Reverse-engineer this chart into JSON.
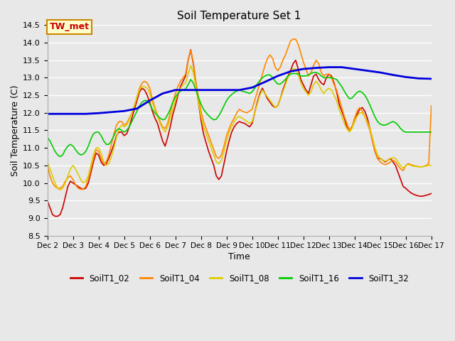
{
  "title": "Soil Temperature Set 1",
  "xlabel": "Time",
  "ylabel": "Soil Temperature (C)",
  "ylim": [
    8.5,
    14.5
  ],
  "xlim": [
    2,
    17
  ],
  "bg_color": "#e8e8e8",
  "grid_color": "white",
  "annotation_text": "TW_met",
  "annotation_bg": "#ffffcc",
  "annotation_border": "#cc8800",
  "annotation_text_color": "#cc0000",
  "series_order": [
    "SoilT1_02",
    "SoilT1_04",
    "SoilT1_08",
    "SoilT1_16",
    "SoilT1_32"
  ],
  "series": {
    "SoilT1_02": {
      "color": "#cc0000",
      "linewidth": 1.2,
      "x": [
        2.0,
        2.1,
        2.2,
        2.3,
        2.4,
        2.5,
        2.6,
        2.7,
        2.8,
        2.9,
        3.0,
        3.1,
        3.2,
        3.3,
        3.4,
        3.5,
        3.6,
        3.7,
        3.8,
        3.9,
        4.0,
        4.1,
        4.2,
        4.3,
        4.4,
        4.5,
        4.6,
        4.7,
        4.8,
        4.9,
        5.0,
        5.1,
        5.2,
        5.3,
        5.4,
        5.5,
        5.6,
        5.7,
        5.8,
        5.9,
        6.0,
        6.1,
        6.2,
        6.3,
        6.4,
        6.5,
        6.6,
        6.7,
        6.8,
        6.9,
        7.0,
        7.1,
        7.2,
        7.3,
        7.4,
        7.5,
        7.6,
        7.7,
        7.8,
        7.9,
        8.0,
        8.1,
        8.2,
        8.3,
        8.4,
        8.5,
        8.6,
        8.7,
        8.8,
        8.9,
        9.0,
        9.1,
        9.2,
        9.3,
        9.4,
        9.5,
        9.6,
        9.7,
        9.8,
        9.9,
        10.0,
        10.1,
        10.2,
        10.3,
        10.4,
        10.5,
        10.6,
        10.7,
        10.8,
        10.9,
        11.0,
        11.1,
        11.2,
        11.3,
        11.4,
        11.5,
        11.6,
        11.7,
        11.8,
        11.9,
        12.0,
        12.1,
        12.2,
        12.3,
        12.4,
        12.5,
        12.6,
        12.7,
        12.8,
        12.9,
        13.0,
        13.1,
        13.2,
        13.3,
        13.4,
        13.5,
        13.6,
        13.7,
        13.8,
        13.9,
        14.0,
        14.1,
        14.2,
        14.3,
        14.4,
        14.5,
        14.6,
        14.7,
        14.8,
        14.9,
        15.0,
        15.1,
        15.2,
        15.3,
        15.4,
        15.5,
        15.6,
        15.7,
        15.8,
        15.9,
        16.0,
        16.1,
        16.2,
        16.3,
        16.4,
        16.5,
        16.6,
        16.7,
        16.8,
        16.9,
        17.0
      ],
      "y": [
        9.5,
        9.3,
        9.1,
        9.05,
        9.05,
        9.1,
        9.3,
        9.6,
        9.9,
        10.05,
        10.0,
        9.95,
        9.9,
        9.85,
        9.82,
        9.85,
        10.0,
        10.3,
        10.6,
        10.85,
        10.8,
        10.6,
        10.5,
        10.55,
        10.7,
        10.9,
        11.1,
        11.35,
        11.45,
        11.45,
        11.35,
        11.4,
        11.6,
        11.85,
        12.1,
        12.35,
        12.6,
        12.7,
        12.65,
        12.5,
        12.3,
        12.05,
        11.85,
        11.7,
        11.45,
        11.2,
        11.05,
        11.3,
        11.6,
        11.95,
        12.2,
        12.5,
        12.75,
        12.9,
        13.05,
        13.5,
        13.8,
        13.4,
        12.85,
        12.3,
        11.8,
        11.4,
        11.15,
        10.9,
        10.7,
        10.5,
        10.2,
        10.1,
        10.2,
        10.55,
        10.9,
        11.2,
        11.45,
        11.6,
        11.7,
        11.75,
        11.72,
        11.7,
        11.65,
        11.6,
        11.7,
        12.0,
        12.3,
        12.55,
        12.7,
        12.55,
        12.4,
        12.3,
        12.2,
        12.15,
        12.2,
        12.4,
        12.65,
        12.85,
        13.05,
        13.2,
        13.4,
        13.5,
        13.25,
        12.95,
        12.8,
        12.65,
        12.55,
        12.8,
        13.05,
        13.1,
        12.95,
        12.85,
        12.8,
        13.0,
        13.1,
        13.05,
        12.85,
        12.6,
        12.25,
        12.05,
        11.85,
        11.6,
        11.5,
        11.6,
        11.75,
        11.95,
        12.1,
        12.15,
        12.05,
        11.85,
        11.55,
        11.2,
        10.9,
        10.7,
        10.7,
        10.65,
        10.6,
        10.65,
        10.7,
        10.6,
        10.5,
        10.3,
        10.1,
        9.9,
        9.85,
        9.78,
        9.72,
        9.68,
        9.65,
        9.63,
        9.62,
        9.63,
        9.65,
        9.67,
        9.7
      ]
    },
    "SoilT1_04": {
      "color": "#ff8800",
      "linewidth": 1.2,
      "x": [
        2.0,
        2.1,
        2.2,
        2.3,
        2.4,
        2.5,
        2.6,
        2.7,
        2.8,
        2.9,
        3.0,
        3.1,
        3.2,
        3.3,
        3.4,
        3.5,
        3.6,
        3.7,
        3.8,
        3.9,
        4.0,
        4.1,
        4.2,
        4.3,
        4.4,
        4.5,
        4.6,
        4.7,
        4.8,
        4.9,
        5.0,
        5.1,
        5.2,
        5.3,
        5.4,
        5.5,
        5.6,
        5.7,
        5.8,
        5.9,
        6.0,
        6.1,
        6.2,
        6.3,
        6.4,
        6.5,
        6.6,
        6.7,
        6.8,
        6.9,
        7.0,
        7.1,
        7.2,
        7.3,
        7.4,
        7.5,
        7.6,
        7.7,
        7.8,
        7.9,
        8.0,
        8.1,
        8.2,
        8.3,
        8.4,
        8.5,
        8.6,
        8.7,
        8.8,
        8.9,
        9.0,
        9.1,
        9.2,
        9.3,
        9.4,
        9.5,
        9.6,
        9.7,
        9.8,
        9.9,
        10.0,
        10.1,
        10.2,
        10.3,
        10.4,
        10.5,
        10.6,
        10.7,
        10.8,
        10.9,
        11.0,
        11.1,
        11.2,
        11.3,
        11.4,
        11.5,
        11.6,
        11.7,
        11.8,
        11.9,
        12.0,
        12.1,
        12.2,
        12.3,
        12.4,
        12.5,
        12.6,
        12.7,
        12.8,
        12.9,
        13.0,
        13.1,
        13.2,
        13.3,
        13.4,
        13.5,
        13.6,
        13.7,
        13.8,
        13.9,
        14.0,
        14.1,
        14.2,
        14.3,
        14.4,
        14.5,
        14.6,
        14.7,
        14.8,
        14.9,
        15.0,
        15.1,
        15.2,
        15.3,
        15.4,
        15.5,
        15.6,
        15.7,
        15.8,
        15.9,
        16.0,
        16.1,
        16.2,
        16.3,
        16.4,
        16.5,
        16.6,
        16.7,
        16.8,
        16.9,
        17.0
      ],
      "y": [
        10.5,
        10.2,
        10.0,
        9.9,
        9.85,
        9.85,
        9.9,
        10.05,
        10.15,
        10.2,
        10.1,
        9.95,
        9.85,
        9.82,
        9.82,
        9.9,
        10.1,
        10.4,
        10.7,
        10.95,
        10.9,
        10.7,
        10.55,
        10.6,
        10.8,
        11.1,
        11.4,
        11.65,
        11.75,
        11.75,
        11.65,
        11.7,
        11.85,
        12.0,
        12.2,
        12.45,
        12.7,
        12.85,
        12.9,
        12.85,
        12.7,
        12.4,
        12.15,
        11.95,
        11.75,
        11.6,
        11.55,
        11.7,
        12.0,
        12.3,
        12.55,
        12.75,
        12.9,
        13.0,
        13.1,
        13.5,
        13.78,
        13.45,
        12.9,
        12.45,
        12.05,
        11.75,
        11.55,
        11.35,
        11.15,
        10.95,
        10.75,
        10.7,
        10.8,
        11.05,
        11.35,
        11.55,
        11.72,
        11.85,
        12.0,
        12.1,
        12.05,
        12.02,
        12.0,
        12.05,
        12.1,
        12.35,
        12.6,
        12.85,
        13.1,
        13.35,
        13.55,
        13.65,
        13.55,
        13.3,
        13.2,
        13.3,
        13.5,
        13.65,
        13.85,
        14.05,
        14.1,
        14.1,
        13.95,
        13.7,
        13.45,
        13.25,
        13.05,
        13.15,
        13.35,
        13.5,
        13.4,
        13.15,
        13.05,
        13.1,
        13.1,
        13.0,
        12.8,
        12.65,
        12.4,
        12.15,
        11.9,
        11.7,
        11.5,
        11.6,
        11.85,
        12.05,
        12.15,
        12.05,
        11.9,
        11.7,
        11.5,
        11.2,
        10.9,
        10.7,
        10.6,
        10.55,
        10.52,
        10.55,
        10.6,
        10.65,
        10.6,
        10.5,
        10.4,
        10.35,
        10.5,
        10.55,
        10.52,
        10.5,
        10.48,
        10.47,
        10.46,
        10.47,
        10.5,
        10.55,
        12.2
      ]
    },
    "SoilT1_08": {
      "color": "#ddcc00",
      "linewidth": 1.2,
      "x": [
        2.0,
        2.1,
        2.2,
        2.3,
        2.4,
        2.5,
        2.6,
        2.7,
        2.8,
        2.9,
        3.0,
        3.1,
        3.2,
        3.3,
        3.4,
        3.5,
        3.6,
        3.7,
        3.8,
        3.9,
        4.0,
        4.1,
        4.2,
        4.3,
        4.4,
        4.5,
        4.6,
        4.7,
        4.8,
        4.9,
        5.0,
        5.1,
        5.2,
        5.3,
        5.4,
        5.5,
        5.6,
        5.7,
        5.8,
        5.9,
        6.0,
        6.1,
        6.2,
        6.3,
        6.4,
        6.5,
        6.6,
        6.7,
        6.8,
        6.9,
        7.0,
        7.1,
        7.2,
        7.3,
        7.4,
        7.5,
        7.6,
        7.7,
        7.8,
        7.9,
        8.0,
        8.1,
        8.2,
        8.3,
        8.4,
        8.5,
        8.6,
        8.7,
        8.8,
        8.9,
        9.0,
        9.1,
        9.2,
        9.3,
        9.4,
        9.5,
        9.6,
        9.7,
        9.8,
        9.9,
        10.0,
        10.1,
        10.2,
        10.3,
        10.4,
        10.5,
        10.6,
        10.7,
        10.8,
        10.9,
        11.0,
        11.1,
        11.2,
        11.3,
        11.4,
        11.5,
        11.6,
        11.7,
        11.8,
        11.9,
        12.0,
        12.1,
        12.2,
        12.3,
        12.4,
        12.5,
        12.6,
        12.7,
        12.8,
        12.9,
        13.0,
        13.1,
        13.2,
        13.3,
        13.4,
        13.5,
        13.6,
        13.7,
        13.8,
        13.9,
        14.0,
        14.1,
        14.2,
        14.3,
        14.4,
        14.5,
        14.6,
        14.7,
        14.8,
        14.9,
        15.0,
        15.1,
        15.2,
        15.3,
        15.4,
        15.5,
        15.6,
        15.7,
        15.8,
        15.9,
        16.0,
        16.1,
        16.2,
        16.3,
        16.4,
        16.5,
        16.6,
        16.7,
        16.8,
        16.9,
        17.0
      ],
      "y": [
        10.6,
        10.4,
        10.2,
        10.0,
        9.85,
        9.8,
        9.85,
        10.0,
        10.2,
        10.4,
        10.5,
        10.4,
        10.25,
        10.1,
        10.0,
        10.05,
        10.2,
        10.5,
        10.8,
        11.0,
        11.0,
        10.85,
        10.6,
        10.5,
        10.55,
        10.75,
        11.0,
        11.3,
        11.55,
        11.65,
        11.6,
        11.65,
        11.8,
        12.0,
        12.2,
        12.45,
        12.65,
        12.75,
        12.75,
        12.7,
        12.55,
        12.3,
        12.1,
        11.9,
        11.7,
        11.55,
        11.45,
        11.6,
        11.85,
        12.1,
        12.35,
        12.55,
        12.7,
        12.8,
        12.85,
        13.1,
        13.35,
        13.15,
        12.75,
        12.3,
        11.9,
        11.6,
        11.4,
        11.2,
        11.0,
        10.8,
        10.6,
        10.55,
        10.65,
        10.9,
        11.2,
        11.45,
        11.6,
        11.75,
        11.85,
        11.9,
        11.85,
        11.8,
        11.75,
        11.7,
        11.75,
        12.0,
        12.25,
        12.5,
        12.65,
        12.55,
        12.45,
        12.35,
        12.25,
        12.15,
        12.2,
        12.4,
        12.6,
        12.8,
        13.0,
        13.15,
        13.25,
        13.25,
        13.1,
        12.85,
        12.7,
        12.6,
        12.5,
        12.6,
        12.8,
        12.9,
        12.8,
        12.65,
        12.55,
        12.65,
        12.7,
        12.65,
        12.5,
        12.35,
        12.1,
        11.9,
        11.7,
        11.55,
        11.45,
        11.55,
        11.75,
        11.9,
        12.0,
        12.0,
        11.9,
        11.75,
        11.55,
        11.3,
        11.0,
        10.8,
        10.7,
        10.65,
        10.62,
        10.65,
        10.7,
        10.72,
        10.7,
        10.6,
        10.5,
        10.42,
        10.5,
        10.52,
        10.5,
        10.48,
        10.47,
        10.46,
        10.46,
        10.47,
        10.48,
        10.5,
        10.5
      ]
    },
    "SoilT1_16": {
      "color": "#00cc00",
      "linewidth": 1.2,
      "x": [
        2.0,
        2.1,
        2.2,
        2.3,
        2.4,
        2.5,
        2.6,
        2.7,
        2.8,
        2.9,
        3.0,
        3.1,
        3.2,
        3.3,
        3.4,
        3.5,
        3.6,
        3.7,
        3.8,
        3.9,
        4.0,
        4.1,
        4.2,
        4.3,
        4.4,
        4.5,
        4.6,
        4.7,
        4.8,
        4.9,
        5.0,
        5.1,
        5.2,
        5.3,
        5.4,
        5.5,
        5.6,
        5.7,
        5.8,
        5.9,
        6.0,
        6.1,
        6.2,
        6.3,
        6.4,
        6.5,
        6.6,
        6.7,
        6.8,
        6.9,
        7.0,
        7.1,
        7.2,
        7.3,
        7.4,
        7.5,
        7.6,
        7.7,
        7.8,
        7.9,
        8.0,
        8.1,
        8.2,
        8.3,
        8.4,
        8.5,
        8.6,
        8.7,
        8.8,
        8.9,
        9.0,
        9.1,
        9.2,
        9.3,
        9.4,
        9.5,
        9.6,
        9.7,
        9.8,
        9.9,
        10.0,
        10.1,
        10.2,
        10.3,
        10.4,
        10.5,
        10.6,
        10.7,
        10.8,
        10.9,
        11.0,
        11.1,
        11.2,
        11.3,
        11.4,
        11.5,
        11.6,
        11.7,
        11.8,
        11.9,
        12.0,
        12.1,
        12.2,
        12.3,
        12.4,
        12.5,
        12.6,
        12.7,
        12.8,
        12.9,
        13.0,
        13.1,
        13.2,
        13.3,
        13.4,
        13.5,
        13.6,
        13.7,
        13.8,
        13.9,
        14.0,
        14.1,
        14.2,
        14.3,
        14.4,
        14.5,
        14.6,
        14.7,
        14.8,
        14.9,
        15.0,
        15.1,
        15.2,
        15.3,
        15.4,
        15.5,
        15.6,
        15.7,
        15.8,
        15.9,
        16.0,
        16.1,
        16.2,
        16.3,
        16.4,
        16.5,
        16.6,
        16.7,
        16.8,
        16.9,
        17.0
      ],
      "y": [
        11.3,
        11.2,
        11.05,
        10.9,
        10.8,
        10.75,
        10.8,
        10.95,
        11.05,
        11.1,
        11.05,
        10.95,
        10.85,
        10.8,
        10.82,
        10.9,
        11.05,
        11.25,
        11.4,
        11.45,
        11.45,
        11.35,
        11.2,
        11.1,
        11.1,
        11.2,
        11.35,
        11.5,
        11.55,
        11.5,
        11.45,
        11.5,
        11.6,
        11.75,
        11.9,
        12.05,
        12.2,
        12.3,
        12.35,
        12.35,
        12.25,
        12.1,
        12.0,
        11.92,
        11.85,
        11.8,
        11.82,
        11.95,
        12.1,
        12.3,
        12.45,
        12.55,
        12.62,
        12.65,
        12.68,
        12.8,
        12.95,
        12.85,
        12.65,
        12.45,
        12.25,
        12.1,
        12.0,
        11.92,
        11.85,
        11.8,
        11.82,
        11.92,
        12.05,
        12.2,
        12.35,
        12.45,
        12.52,
        12.58,
        12.62,
        12.65,
        12.62,
        12.6,
        12.58,
        12.55,
        12.6,
        12.7,
        12.82,
        12.92,
        13.0,
        13.05,
        13.08,
        13.08,
        13.0,
        12.9,
        12.82,
        12.82,
        12.88,
        12.95,
        13.05,
        13.1,
        13.12,
        13.12,
        13.1,
        13.05,
        13.05,
        13.05,
        13.08,
        13.12,
        13.15,
        13.15,
        13.12,
        13.05,
        13.0,
        13.0,
        13.0,
        13.0,
        12.98,
        12.95,
        12.85,
        12.75,
        12.62,
        12.5,
        12.4,
        12.42,
        12.5,
        12.58,
        12.62,
        12.58,
        12.5,
        12.38,
        12.22,
        12.05,
        11.88,
        11.75,
        11.68,
        11.65,
        11.65,
        11.68,
        11.72,
        11.75,
        11.72,
        11.65,
        11.55,
        11.48,
        11.45,
        11.45,
        11.45,
        11.45,
        11.45,
        11.45,
        11.45,
        11.45,
        11.45,
        11.45,
        11.45
      ]
    },
    "SoilT1_32": {
      "color": "#0000dd",
      "linewidth": 2.0,
      "x": [
        2.0,
        2.5,
        3.0,
        3.5,
        4.0,
        4.5,
        5.0,
        5.5,
        6.0,
        6.5,
        7.0,
        7.5,
        8.0,
        8.5,
        9.0,
        9.5,
        10.0,
        10.5,
        11.0,
        11.5,
        12.0,
        12.5,
        13.0,
        13.5,
        14.0,
        14.5,
        15.0,
        15.5,
        16.0,
        16.5,
        17.0
      ],
      "y": [
        11.97,
        11.97,
        11.97,
        11.97,
        11.99,
        12.02,
        12.05,
        12.12,
        12.35,
        12.55,
        12.65,
        12.65,
        12.65,
        12.65,
        12.65,
        12.65,
        12.72,
        12.88,
        13.05,
        13.18,
        13.25,
        13.28,
        13.3,
        13.3,
        13.25,
        13.2,
        13.15,
        13.08,
        13.02,
        12.98,
        12.97
      ]
    }
  },
  "xticks": [
    2,
    3,
    4,
    5,
    6,
    7,
    8,
    9,
    10,
    11,
    12,
    13,
    14,
    15,
    16,
    17
  ],
  "xtick_labels": [
    "Dec 2",
    "Dec 3",
    "Dec 4",
    "Dec 5",
    "Dec 6",
    "Dec 7",
    "Dec 8",
    "Dec 9",
    "Dec 10",
    "Dec 11",
    "Dec 12",
    "Dec 13",
    "Dec 14",
    "Dec 15",
    "Dec 16",
    "Dec 17"
  ],
  "yticks": [
    8.5,
    9.0,
    9.5,
    10.0,
    10.5,
    11.0,
    11.5,
    12.0,
    12.5,
    13.0,
    13.5,
    14.0,
    14.5
  ],
  "legend_entries": [
    "SoilT1_02",
    "SoilT1_04",
    "SoilT1_08",
    "SoilT1_16",
    "SoilT1_32"
  ],
  "legend_colors": [
    "#cc0000",
    "#ff8800",
    "#ddcc00",
    "#00cc00",
    "#0000dd"
  ]
}
